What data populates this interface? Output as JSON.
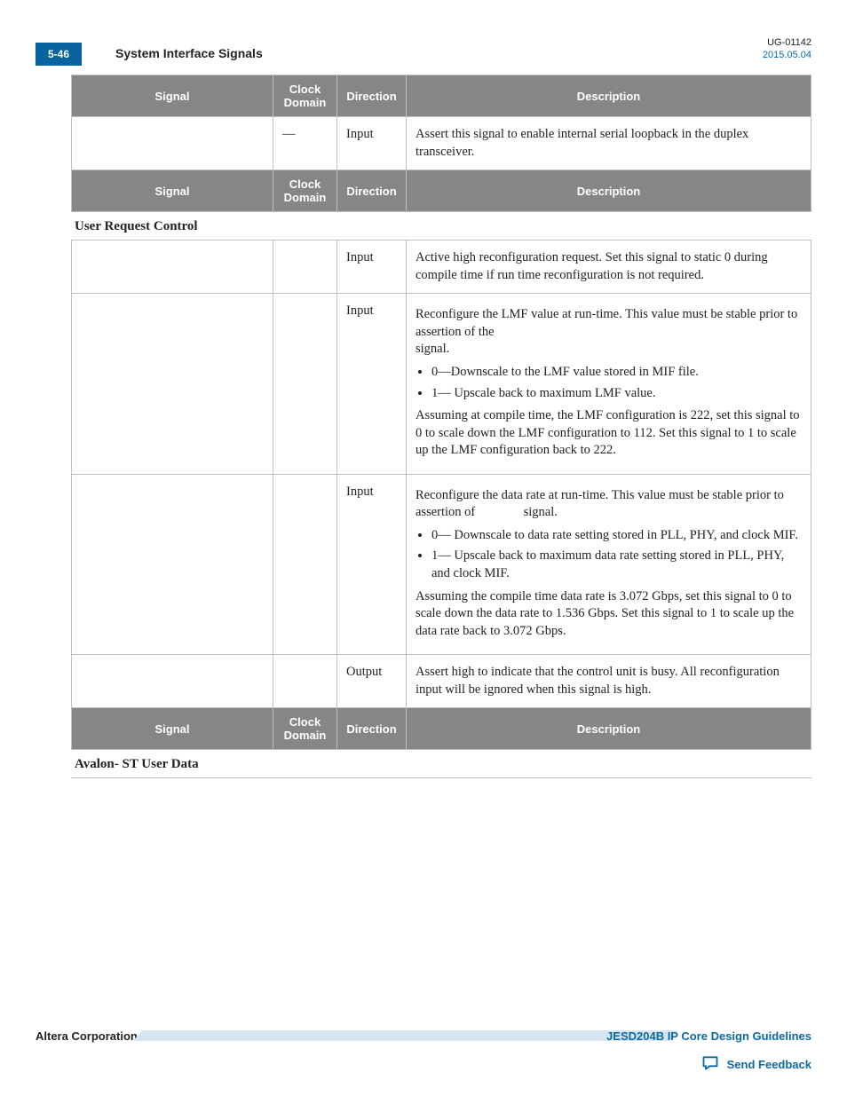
{
  "header": {
    "page_tab": "5-46",
    "section_title": "System Interface Signals",
    "doc_id": "UG-01142",
    "doc_date": "2015.05.04"
  },
  "columns": {
    "signal": "Signal",
    "clock": "Clock Domain",
    "direction": "Direction",
    "description": "Description"
  },
  "table1_rows": [
    {
      "signal": "",
      "clock": "—",
      "direction": "Input",
      "desc_html": "Assert this signal to enable internal serial loopback in the duplex transceiver."
    }
  ],
  "section2_title": "User Request Control",
  "table2_rows": [
    {
      "signal": "",
      "clock": "",
      "direction": "Input",
      "desc_html": "Active high reconfiguration request. Set this signal to static 0 during compile time if run time reconfiguration is not required."
    },
    {
      "signal": "",
      "clock": "",
      "direction": "Input",
      "desc_html": "<p class=\"para\">Reconfigure the LMF value at run-time. This value must be stable prior to assertion of the<br>signal.</p><ul class=\"b\"><li>0—Downscale to the LMF value stored in MIF file.</li><li>1— Upscale back to maximum LMF value.</li></ul><p class=\"para\">Assuming at compile time, the LMF configuration is 222, set this signal to 0 to scale down the LMF configuration to 112. Set this signal to 1 to scale up the LMF configuration back to 222.</p>"
    },
    {
      "signal": "",
      "clock": "",
      "direction": "Input",
      "desc_html": "<p class=\"para\">Reconfigure the data rate at run-time. This value must be stable prior to assertion of &nbsp;&nbsp;&nbsp;&nbsp;&nbsp;&nbsp;&nbsp;&nbsp;&nbsp;&nbsp;&nbsp;&nbsp;&nbsp;&nbsp;signal.</p><ul class=\"b\"><li>0— Downscale to data rate setting stored in PLL, PHY, and clock MIF.</li><li>1— Upscale back to maximum data rate setting stored in PLL, PHY, and clock MIF.</li></ul><p class=\"para\">Assuming the compile time data rate is 3.072 Gbps, set this signal to 0 to scale down the data rate to 1.536 Gbps. Set this signal to 1 to scale up the data rate back to 3.072 Gbps.</p>"
    },
    {
      "signal": "",
      "clock": "",
      "direction": "Output",
      "desc_html": "Assert high to indicate that the control unit is busy. All reconfiguration input will be ignored when this signal is high."
    }
  ],
  "section3_title": "Avalon- ST User Data",
  "footer": {
    "left": "Altera Corporation",
    "right": "JESD204B IP Core Design Guidelines",
    "feedback": "Send Feedback"
  },
  "colors": {
    "header_bg": "#848688",
    "header_fg": "#ffffff",
    "border": "#bfbfbf",
    "tab_bg": "#07649e",
    "link": "#0a6aa6",
    "footer_bar": "#d7e6f2"
  }
}
